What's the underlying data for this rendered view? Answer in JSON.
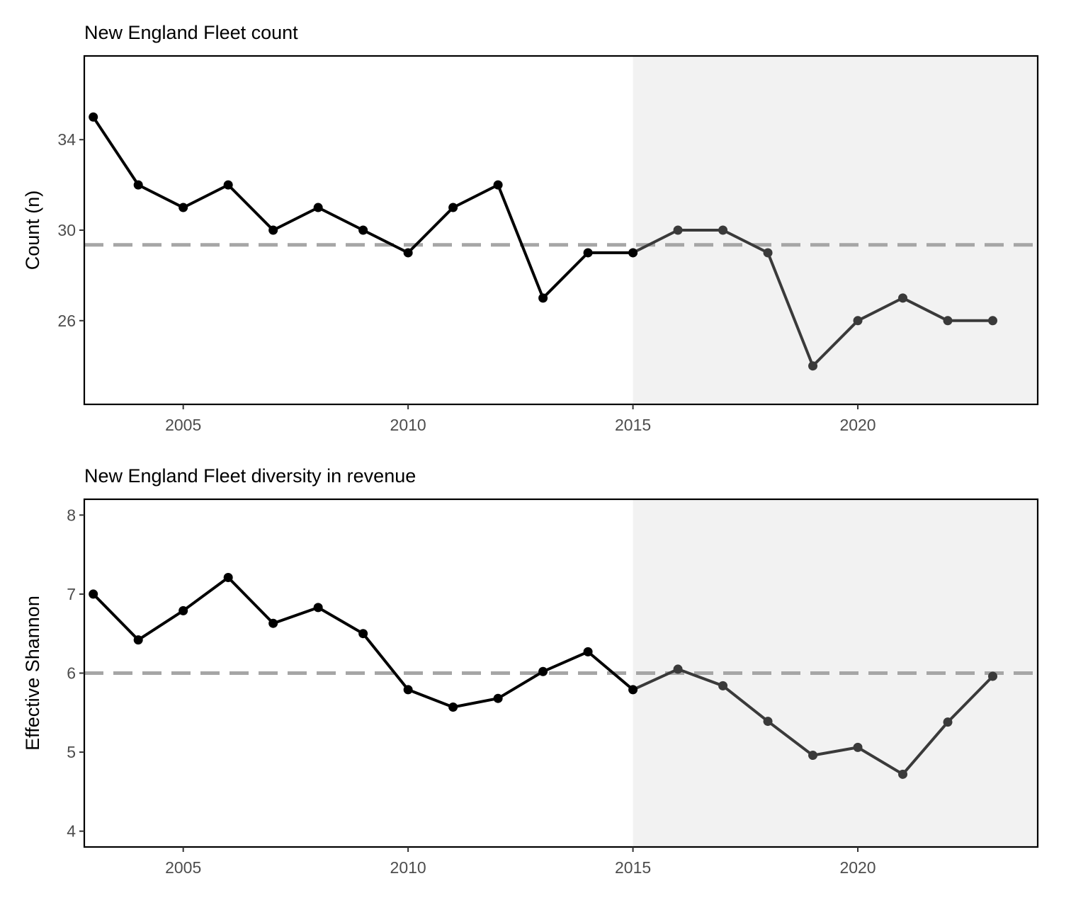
{
  "chart_data": [
    {
      "type": "line",
      "title": "New England Fleet count",
      "xlabel": "",
      "ylabel": "Count (n)",
      "xlim": [
        2002.8,
        2024.0
      ],
      "ylim": [
        22.3,
        37.7
      ],
      "x_ticks": [
        2005,
        2010,
        2015,
        2020
      ],
      "y_ticks": [
        26,
        30,
        34
      ],
      "reference_line": 29.35,
      "shaded_region": [
        2015,
        2024
      ],
      "grid": false,
      "colors": {
        "line": "#000000",
        "recent": "#3a3a3a",
        "shade": "#f2f2f2",
        "ref": "#a6a6a6"
      },
      "x": [
        2003,
        2004,
        2005,
        2006,
        2007,
        2008,
        2009,
        2010,
        2011,
        2012,
        2013,
        2014,
        2015,
        2016,
        2017,
        2018,
        2019,
        2020,
        2021,
        2022,
        2023
      ],
      "y": [
        35,
        32,
        31,
        32,
        30,
        31,
        30,
        29,
        31,
        32,
        27,
        29,
        29,
        30,
        30,
        29,
        24,
        26,
        27,
        26,
        26
      ]
    },
    {
      "type": "line",
      "title": "New England Fleet diversity in revenue",
      "xlabel": "",
      "ylabel": "Effective Shannon",
      "xlim": [
        2002.8,
        2024.0
      ],
      "ylim": [
        3.8,
        8.2
      ],
      "x_ticks": [
        2005,
        2010,
        2015,
        2020
      ],
      "y_ticks": [
        4,
        5,
        6,
        7,
        8
      ],
      "reference_line": 6.0,
      "shaded_region": [
        2015,
        2024
      ],
      "grid": false,
      "colors": {
        "line": "#000000",
        "recent": "#3a3a3a",
        "shade": "#f2f2f2",
        "ref": "#a6a6a6"
      },
      "x": [
        2003,
        2004,
        2005,
        2006,
        2007,
        2008,
        2009,
        2010,
        2011,
        2012,
        2013,
        2014,
        2015,
        2016,
        2017,
        2018,
        2019,
        2020,
        2021,
        2022,
        2023
      ],
      "y": [
        7.0,
        6.42,
        6.79,
        7.21,
        6.63,
        6.83,
        6.5,
        5.79,
        5.57,
        5.68,
        6.02,
        6.27,
        5.79,
        6.05,
        5.84,
        5.39,
        4.96,
        5.06,
        4.72,
        5.38,
        5.96
      ]
    }
  ]
}
